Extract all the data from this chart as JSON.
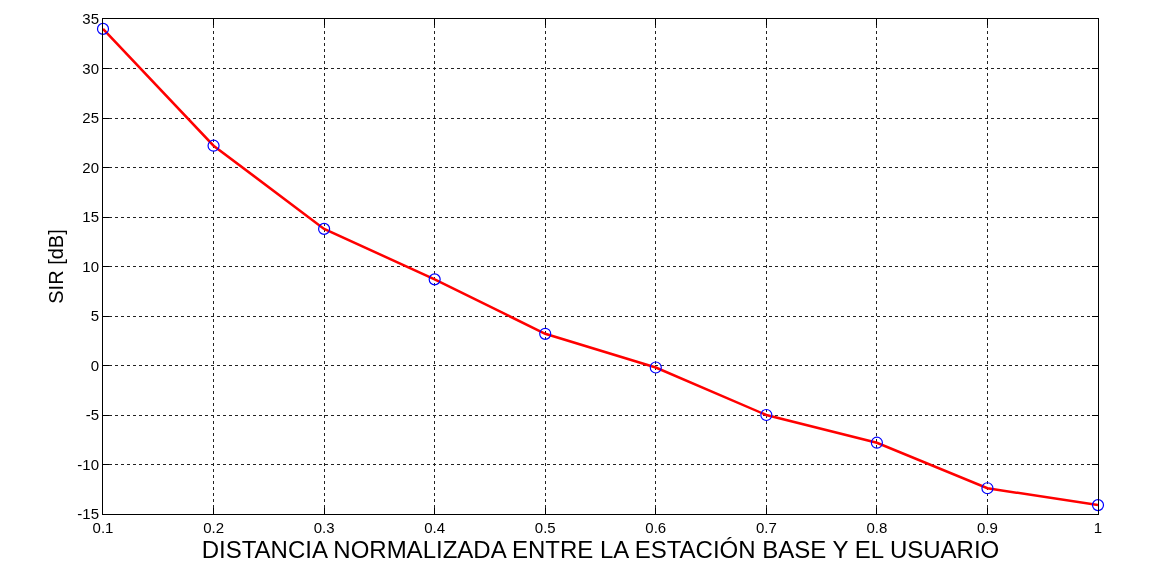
{
  "chart_data": {
    "type": "line",
    "xlabel": "DISTANCIA NORMALIZADA ENTRE LA ESTACIÓN BASE Y EL USUARIO",
    "ylabel": "SIR [dB]",
    "x": [
      0.1,
      0.2,
      0.3,
      0.4,
      0.5,
      0.6,
      0.7,
      0.8,
      0.9,
      1
    ],
    "series": [
      {
        "color": "#ff0000",
        "colors": [
          "#0000ff",
          "#0000ff",
          "#0000ff",
          "#0000ff",
          "#0000ff",
          "#0000ff",
          "#0000ff",
          "#0000ff",
          "#0000ff",
          "#0000ff"
        ],
        "values": [
          34.0,
          22.2,
          13.8,
          8.7,
          3.2,
          -0.2,
          -5.0,
          -7.8,
          -12.4,
          -14.1
        ]
      }
    ],
    "xlim": [
      0.1,
      1
    ],
    "xticks": [
      {
        "value": 0.1,
        "label": "0.1"
      },
      {
        "value": 0.2,
        "label": "0.2"
      },
      {
        "value": 0.3,
        "label": "0.3"
      },
      {
        "value": 0.4,
        "label": "0.4"
      },
      {
        "value": 0.5,
        "label": "0.5"
      },
      {
        "value": 0.6,
        "label": "0.6"
      },
      {
        "value": 0.7,
        "label": "0.7"
      },
      {
        "value": 0.8,
        "label": "0.8"
      },
      {
        "value": 0.9,
        "label": "0.9"
      },
      1
    ],
    "ylim": [
      -15,
      35
    ],
    "yticks": [
      -15,
      -10,
      -5,
      0,
      5,
      10,
      15,
      20,
      25,
      30,
      35
    ],
    "grid": true,
    "marker": "circle",
    "line_style": "solid"
  }
}
